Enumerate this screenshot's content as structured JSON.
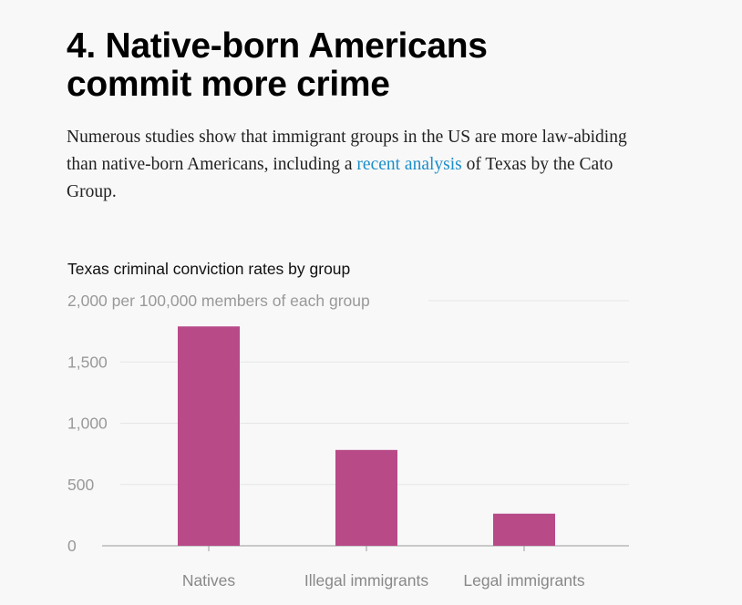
{
  "article": {
    "heading_line1": "4. Native-born Americans",
    "heading_line2": "commit more crime",
    "lede_before": "Numerous studies show that immigrant groups in the US are more law-abiding than native-born Americans, including a ",
    "lede_link": "recent analysis",
    "lede_after": " of Texas by the Cato Group."
  },
  "colors": {
    "bar": "#b84a88",
    "link": "#1b8ec9",
    "grid": "#e6e6e6",
    "axis": "#9a9a9a"
  },
  "chart_data": {
    "type": "bar",
    "title": "Texas criminal conviction rates by group",
    "ylabel": "per 100,000 members of each group",
    "categories": [
      "Natives",
      "Illegal immigrants",
      "Legal immigrants"
    ],
    "values": [
      1790,
      782,
      262
    ],
    "ylim": [
      0,
      2000
    ],
    "yticks": [
      0,
      500,
      1000,
      1500,
      2000
    ],
    "ytick_labels": [
      "0",
      "500",
      "1,000",
      "1,500",
      "2,000 per 100,000 members of each group"
    ],
    "grid": true
  }
}
